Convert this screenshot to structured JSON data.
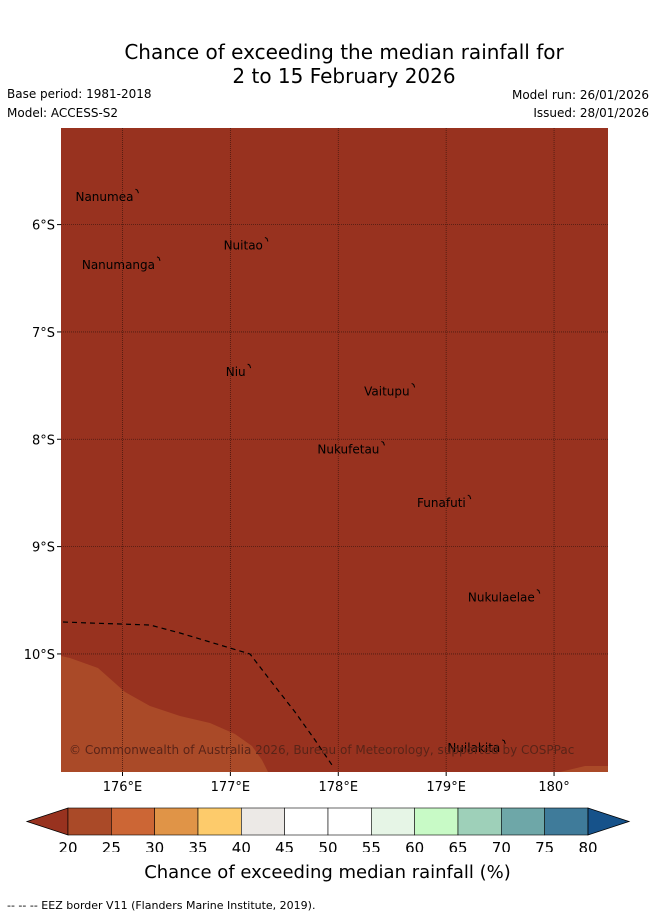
{
  "title_line1": "Chance of exceeding the median rainfall for",
  "title_line2": "2 to 15 February 2026",
  "base_period": "Base period: 1981-2018",
  "model": "Model: ACCESS-S2",
  "model_run": "Model run: 26/01/2026",
  "issued": "Issued: 28/01/2026",
  "map": {
    "lon_range": [
      175.5,
      180.5
    ],
    "lat_range": [
      -11.0,
      -5.0
    ],
    "lon_ticks": [
      {
        "value": 176,
        "label": "176°E"
      },
      {
        "value": 177,
        "label": "177°E"
      },
      {
        "value": 178,
        "label": "178°E"
      },
      {
        "value": 179,
        "label": "179°E"
      },
      {
        "value": 180,
        "label": "180°"
      }
    ],
    "lat_ticks": [
      {
        "value": -6,
        "label": "6°S"
      },
      {
        "value": -7,
        "label": "7°S"
      },
      {
        "value": -8,
        "label": "8°S"
      },
      {
        "value": -9,
        "label": "9°S"
      },
      {
        "value": -10,
        "label": "10°S"
      }
    ],
    "islands": [
      {
        "name": "Nanumea",
        "lon": 176.12,
        "lat": -5.67
      },
      {
        "name": "Nuitao",
        "lon": 177.32,
        "lat": -6.12
      },
      {
        "name": "Nanumanga",
        "lon": 176.32,
        "lat": -6.3
      },
      {
        "name": "Niu",
        "lon": 177.16,
        "lat": -7.3
      },
      {
        "name": "Vaitupu",
        "lon": 178.68,
        "lat": -7.48
      },
      {
        "name": "Nukufetau",
        "lon": 178.4,
        "lat": -8.02
      },
      {
        "name": "Funafuti",
        "lon": 179.2,
        "lat": -8.52
      },
      {
        "name": "Nukulaelae",
        "lon": 179.84,
        "lat": -9.4
      },
      {
        "name": "Nuilakita",
        "lon": 179.52,
        "lat": -10.8
      }
    ],
    "copyright": "© Commonwealth of Australia 2026, Bureau of Meteorology, supported by COSPPac",
    "dominant_category": "20-25",
    "secondary_category": "25-30"
  },
  "colorbar": {
    "ticks": [
      "20",
      "25",
      "30",
      "35",
      "40",
      "45",
      "50",
      "55",
      "60",
      "65",
      "70",
      "75",
      "80"
    ],
    "colors": [
      "#aa4a28",
      "#cc6635",
      "#e09447",
      "#fdcb6b",
      "#ece9e6",
      "#ffffff",
      "#ffffff",
      "#e6f5e6",
      "#c8fac6",
      "#9ed0b9",
      "#6ea7a8",
      "#3f7b9a"
    ],
    "under_color": "#98321f",
    "over_color": "#16528a",
    "label": "Chance of exceeding median rainfall (%)"
  },
  "colors": {
    "map_main": "#98321f",
    "map_secondary": "#aa4a28"
  },
  "footnote": "-- -- -- EEZ border V11 (Flanders Marine Institute, 2019)."
}
